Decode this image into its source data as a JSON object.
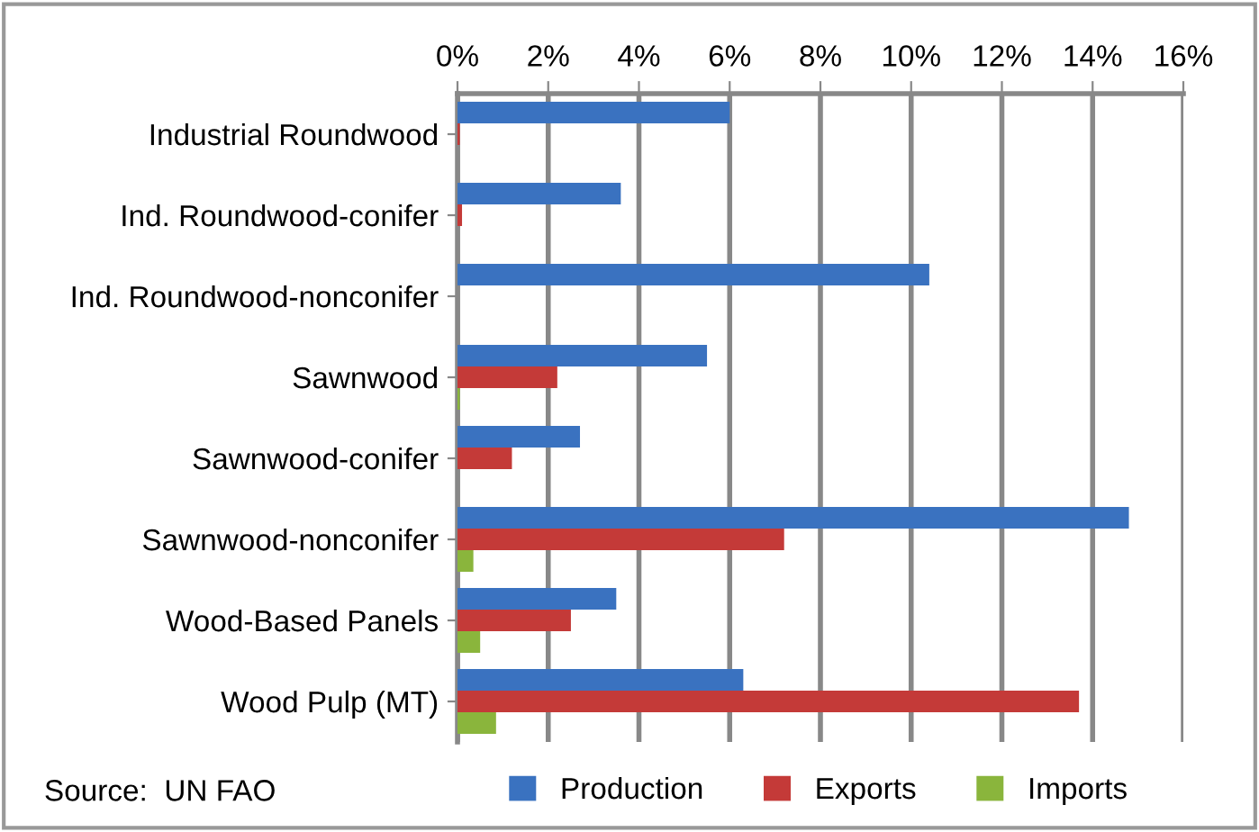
{
  "chart_data": {
    "type": "bar",
    "orientation": "horizontal",
    "categories": [
      "Industrial Roundwood",
      "Ind. Roundwood-conifer",
      "Ind. Roundwood-nonconifer",
      "Sawnwood",
      "Sawnwood-conifer",
      "Sawnwood-nonconifer",
      "Wood-Based Panels",
      "Wood Pulp (MT)"
    ],
    "series": [
      {
        "name": "Production",
        "color": "#3a72c0",
        "values": [
          6.0,
          3.6,
          10.4,
          5.5,
          2.7,
          14.8,
          3.5,
          6.3
        ]
      },
      {
        "name": "Exports",
        "color": "#c43a38",
        "values": [
          0.05,
          0.1,
          0,
          2.2,
          1.2,
          7.2,
          2.5,
          13.7
        ]
      },
      {
        "name": "Imports",
        "color": "#8ab53c",
        "values": [
          0,
          0,
          0,
          0.05,
          0,
          0.35,
          0.5,
          0.85
        ]
      }
    ],
    "xlim": [
      0,
      16
    ],
    "xticks": [
      {
        "value": 0,
        "label": "0%"
      },
      {
        "value": 2,
        "label": "2%"
      },
      {
        "value": 4,
        "label": "4%"
      },
      {
        "value": 6,
        "label": "6%"
      },
      {
        "value": 8,
        "label": "8%"
      },
      {
        "value": 10,
        "label": "10%"
      },
      {
        "value": 12,
        "label": "12%"
      },
      {
        "value": 14,
        "label": "14%"
      },
      {
        "value": 16,
        "label": "16%"
      }
    ],
    "grid": "x",
    "legend": "bottom",
    "annotations": [
      "Source:  UN FAO"
    ]
  }
}
